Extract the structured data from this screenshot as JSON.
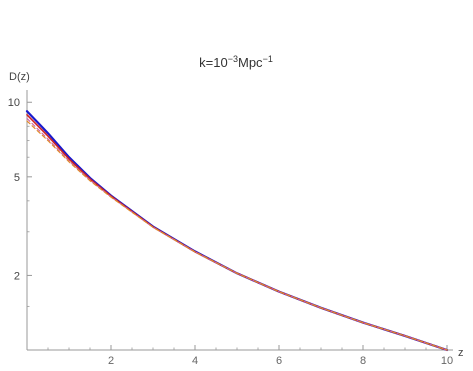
{
  "chart_data": {
    "type": "line",
    "title": {
      "base": "k=10",
      "exponent1": "−3",
      "unit": "Mpc",
      "exponent2": "−1"
    },
    "xlabel": "z",
    "ylabel": "D(z)",
    "x_scale": "linear",
    "y_scale": "log",
    "xlim": [
      0,
      10
    ],
    "ylim": [
      1,
      10.5
    ],
    "x_ticks": [
      2,
      4,
      6,
      8,
      10
    ],
    "x_tick_labels": [
      "2",
      "4",
      "6",
      "8",
      "10"
    ],
    "y_ticks": [
      2,
      5,
      10
    ],
    "y_tick_labels": [
      "2",
      "5",
      "10"
    ],
    "grid": false,
    "legend": "none",
    "series": [
      {
        "color": "#1a1acc",
        "style": "solid",
        "x": [
          0,
          0.5,
          1,
          1.5,
          2,
          3,
          4,
          5,
          6,
          7,
          8,
          9,
          10
        ],
        "y": [
          9.2,
          7.5,
          6.0,
          4.95,
          4.2,
          3.15,
          2.5,
          2.04,
          1.72,
          1.48,
          1.29,
          1.14,
          1.0
        ]
      },
      {
        "color": "#cc2222",
        "style": "solid",
        "x": [
          0,
          0.5,
          1,
          1.5,
          2,
          3,
          4,
          5,
          6,
          7,
          8,
          9,
          10
        ],
        "y": [
          8.9,
          7.3,
          5.9,
          4.9,
          4.18,
          3.14,
          2.49,
          2.04,
          1.72,
          1.48,
          1.29,
          1.14,
          1.0
        ]
      },
      {
        "color": "#cc66aa",
        "style": "dashed",
        "x": [
          0,
          0.5,
          1,
          1.5,
          2,
          3,
          4,
          5,
          6,
          7,
          8,
          9,
          10
        ],
        "y": [
          8.6,
          7.1,
          5.8,
          4.85,
          4.15,
          3.13,
          2.49,
          2.04,
          1.72,
          1.48,
          1.29,
          1.14,
          1.0
        ]
      },
      {
        "color": "#e08a2a",
        "style": "dashed",
        "x": [
          0,
          0.5,
          1,
          1.5,
          2,
          3,
          4,
          5,
          6,
          7,
          8,
          9,
          10
        ],
        "y": [
          8.4,
          7.0,
          5.75,
          4.82,
          4.14,
          3.13,
          2.49,
          2.04,
          1.72,
          1.48,
          1.29,
          1.14,
          1.0
        ]
      }
    ]
  }
}
